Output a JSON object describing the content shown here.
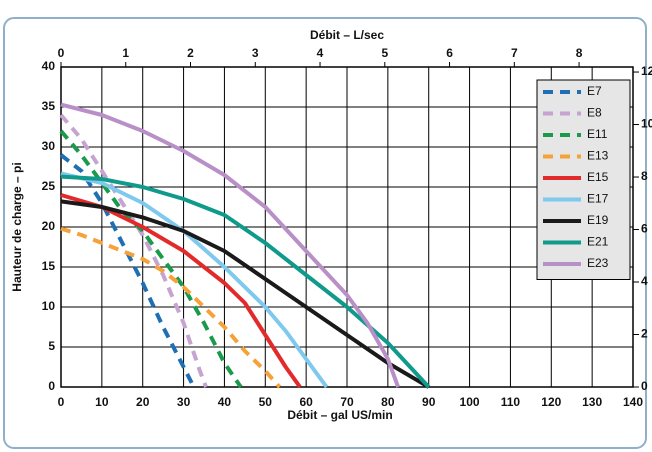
{
  "chart_data": {
    "type": "line",
    "x_label": "Débit – gal US/min",
    "x2_label": "Débit – L/sec",
    "y_label": "Hauteur de charge – pi",
    "xlim": [
      0,
      140
    ],
    "xticks": [
      0,
      10,
      20,
      30,
      40,
      50,
      60,
      70,
      80,
      90,
      100,
      110,
      120,
      130,
      140
    ],
    "x2lim": [
      0,
      8.833
    ],
    "x2ticks": [
      0,
      1,
      2,
      3,
      4,
      5,
      6,
      7,
      8
    ],
    "ylim": [
      0,
      40
    ],
    "yticks": [
      0,
      5,
      10,
      15,
      20,
      25,
      30,
      35,
      40
    ],
    "y2lim": [
      0,
      12.192
    ],
    "y2ticks": [
      0,
      2,
      4,
      6,
      8,
      10,
      12
    ],
    "grid": true,
    "legend": "upper right",
    "series": [
      {
        "name": "E7",
        "color": "#1f6fb5",
        "dashed": true,
        "x": [
          0,
          5,
          10,
          15,
          20,
          25,
          30,
          32.5
        ],
        "values": [
          29,
          27,
          23,
          18,
          13,
          7.5,
          2.5,
          0
        ]
      },
      {
        "name": "E8",
        "color": "#c7a3d1",
        "dashed": true,
        "x": [
          0,
          5,
          10,
          15,
          20,
          25,
          30,
          34,
          35.5
        ],
        "values": [
          34,
          31,
          27,
          23,
          19,
          14,
          8,
          2,
          0
        ]
      },
      {
        "name": "E11",
        "color": "#1a9a4a",
        "dashed": true,
        "x": [
          0,
          5,
          10,
          15,
          20,
          25,
          30,
          35,
          40,
          44
        ],
        "values": [
          32,
          29,
          25.5,
          22,
          19.5,
          16,
          12.5,
          8,
          3,
          0
        ]
      },
      {
        "name": "E13",
        "color": "#f5a23a",
        "dashed": true,
        "x": [
          0,
          5,
          10,
          15,
          20,
          25,
          30,
          35,
          40,
          45,
          50,
          53.5
        ],
        "values": [
          19.8,
          19,
          18,
          17,
          16,
          14.5,
          12.5,
          10,
          7.5,
          4.5,
          2,
          0
        ]
      },
      {
        "name": "E15",
        "color": "#e32a2a",
        "dashed": false,
        "x": [
          0,
          10,
          20,
          30,
          35,
          40,
          45,
          50,
          55,
          58.5
        ],
        "values": [
          24,
          22.5,
          20,
          17,
          15,
          13,
          10.5,
          6.5,
          2.5,
          0
        ]
      },
      {
        "name": "E17",
        "color": "#7fc8ee",
        "dashed": false,
        "x": [
          0,
          10,
          20,
          30,
          40,
          50,
          55,
          60,
          65
        ],
        "values": [
          26.7,
          25.5,
          23,
          19.5,
          15,
          10,
          7,
          3.5,
          0
        ]
      },
      {
        "name": "E19",
        "color": "#1a1a1a",
        "dashed": false,
        "x": [
          0,
          10,
          20,
          30,
          40,
          50,
          60,
          70,
          80,
          90
        ],
        "values": [
          23.2,
          22.5,
          21.2,
          19.5,
          17,
          13.5,
          10,
          6.5,
          3,
          0
        ]
      },
      {
        "name": "E21",
        "color": "#0f9a8c",
        "dashed": false,
        "x": [
          0,
          10,
          20,
          30,
          40,
          50,
          60,
          70,
          80,
          90
        ],
        "values": [
          26.3,
          26,
          25,
          23.5,
          21.5,
          18,
          14,
          10,
          5.5,
          0
        ]
      },
      {
        "name": "E23",
        "color": "#b98fc8",
        "dashed": false,
        "x": [
          0,
          10,
          20,
          30,
          40,
          50,
          60,
          70,
          75,
          80,
          82.5
        ],
        "values": [
          35.3,
          34,
          32,
          29.5,
          26.5,
          22.5,
          17,
          11.5,
          8,
          3.5,
          0
        ]
      }
    ]
  }
}
